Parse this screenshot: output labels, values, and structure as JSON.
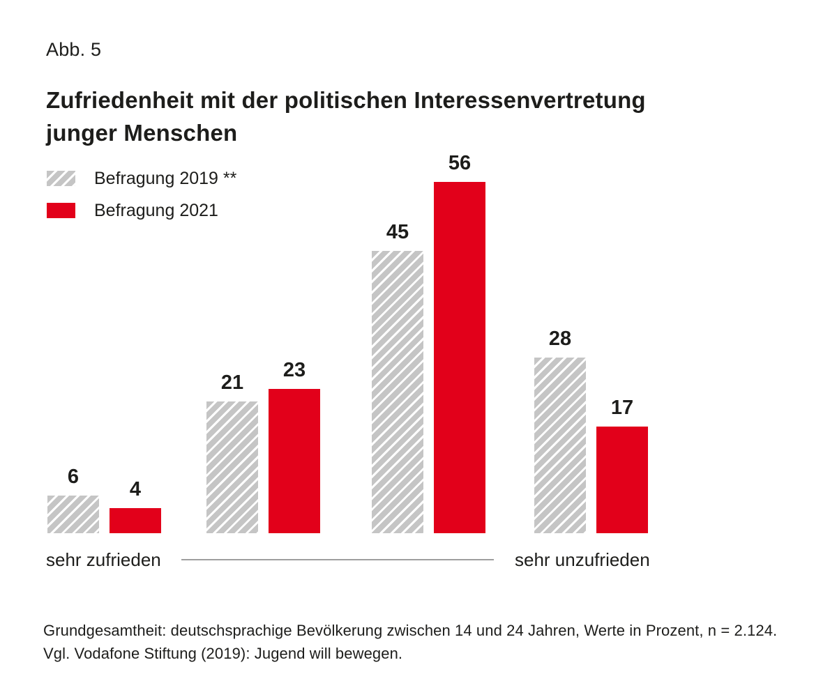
{
  "header": {
    "fig_label": "Abb. 5",
    "title_lines": [
      "Zufriedenheit mit der politischen Interessenvertretung",
      "junger Menschen"
    ]
  },
  "legend": {
    "items": [
      {
        "label": "Befragung 2019 **",
        "style": "hatched"
      },
      {
        "label": "Befragung 2021",
        "style": "solid"
      }
    ]
  },
  "axis": {
    "left_label": "sehr zufrieden",
    "right_label": "sehr unzufrieden"
  },
  "footer": {
    "line1": "Grundgesamtheit: deutschsprachige Bevölkerung zwischen 14 und 24 Jahren, Werte in Prozent, n = 2.124.",
    "line2": "Vgl. Vodafone Stiftung (2019): Jugend will bewegen."
  },
  "chart_data": {
    "type": "bar",
    "title": "Zufriedenheit mit der politischen Interessenvertretung junger Menschen",
    "subtitle": "Abb. 5",
    "categories": [
      "sehr zufrieden",
      "",
      "",
      "sehr unzufrieden"
    ],
    "series": [
      {
        "name": "Befragung 2019 **",
        "values": [
          6,
          21,
          45,
          28
        ],
        "color": "#c5c5c5",
        "pattern": "diagonal-hatch"
      },
      {
        "name": "Befragung 2021",
        "values": [
          4,
          23,
          56,
          17
        ],
        "color": "#e2001a",
        "pattern": "solid"
      }
    ],
    "value_labels": true,
    "unit": "Prozent",
    "ylim": [
      0,
      60
    ],
    "grid": false,
    "legend_position": "top-left",
    "x_axis_note": "continuum from sehr zufrieden to sehr unzufrieden"
  },
  "colors": {
    "accent_red": "#e2001a",
    "hatch_gray": "#c5c5c5",
    "text": "#1d1d1b",
    "axis_line": "#9e9e9e",
    "background": "#ffffff"
  }
}
